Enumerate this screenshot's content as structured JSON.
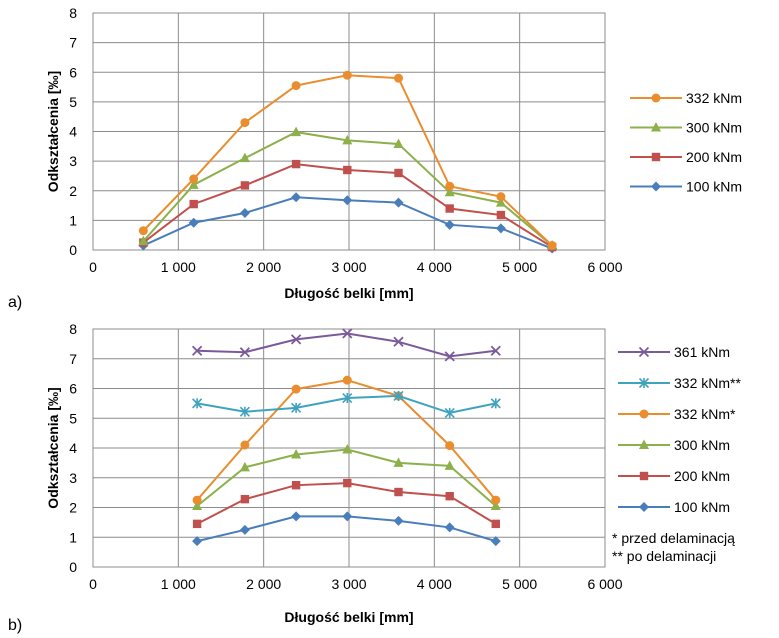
{
  "chart_data": [
    {
      "panel_label": "a)",
      "type": "line",
      "xlabel": "Długość belki [mm]",
      "ylabel": "Odkształcenia [‰]",
      "xlim": [
        0,
        6000
      ],
      "ylim": [
        0,
        8
      ],
      "x_ticks": [
        "0",
        "1 000",
        "2 000",
        "3 000",
        "4 000",
        "5 000",
        "6 000"
      ],
      "x_tick_values": [
        0,
        1000,
        2000,
        3000,
        4000,
        5000,
        6000
      ],
      "y_ticks": [
        "0",
        "1",
        "2",
        "3",
        "4",
        "5",
        "6",
        "7",
        "8"
      ],
      "y_tick_values": [
        0,
        1,
        2,
        3,
        4,
        5,
        6,
        7,
        8
      ],
      "grid": true,
      "legend_position": "right",
      "x": [
        590,
        1180,
        1780,
        2380,
        2980,
        3580,
        4180,
        4780,
        5380
      ],
      "series": [
        {
          "name": "332 kNm",
          "color": "#e98d2f",
          "marker": "circle",
          "values": [
            0.65,
            2.4,
            4.3,
            5.55,
            5.9,
            5.8,
            2.15,
            1.8,
            0.15
          ]
        },
        {
          "name": "300 kNm",
          "color": "#8cb04a",
          "marker": "triangle",
          "values": [
            0.3,
            2.2,
            3.1,
            3.98,
            3.7,
            3.58,
            1.95,
            1.6,
            0.15
          ]
        },
        {
          "name": "200 kNm",
          "color": "#c0504d",
          "marker": "square",
          "values": [
            0.25,
            1.55,
            2.18,
            2.9,
            2.7,
            2.6,
            1.4,
            1.18,
            0.1
          ]
        },
        {
          "name": "100 kNm",
          "color": "#4a7ebb",
          "marker": "diamond",
          "values": [
            0.15,
            0.92,
            1.25,
            1.78,
            1.68,
            1.6,
            0.85,
            0.73,
            0.05
          ]
        }
      ]
    },
    {
      "panel_label": "b)",
      "type": "line",
      "xlabel": "Długość belki [mm]",
      "ylabel": "Odkształcenia [‰]",
      "xlim": [
        0,
        6000
      ],
      "ylim": [
        0,
        8
      ],
      "x_ticks": [
        "0",
        "1 000",
        "2 000",
        "3 000",
        "4 000",
        "5 000",
        "6 000"
      ],
      "x_tick_values": [
        0,
        1000,
        2000,
        3000,
        4000,
        5000,
        6000
      ],
      "y_ticks": [
        "0",
        "1",
        "2",
        "3",
        "4",
        "5",
        "6",
        "7",
        "8"
      ],
      "y_tick_values": [
        0,
        1,
        2,
        3,
        4,
        5,
        6,
        7,
        8
      ],
      "grid": true,
      "legend_position": "right",
      "x": [
        1220,
        1780,
        2380,
        2980,
        3580,
        4180,
        4720
      ],
      "series": [
        {
          "name": "361 kNm",
          "color": "#7b5a9b",
          "marker": "x",
          "values": [
            7.27,
            7.22,
            7.65,
            7.85,
            7.57,
            7.08,
            7.27
          ]
        },
        {
          "name": "332 kNm**",
          "color": "#3fa3be",
          "marker": "star",
          "values": [
            5.5,
            5.22,
            5.35,
            5.68,
            5.75,
            5.18,
            5.5
          ]
        },
        {
          "name": "332 kNm*",
          "color": "#e98d2f",
          "marker": "circle",
          "values": [
            2.25,
            4.1,
            5.98,
            6.28,
            5.75,
            4.08,
            2.25
          ]
        },
        {
          "name": "300 kNm",
          "color": "#8cb04a",
          "marker": "triangle",
          "values": [
            2.05,
            3.35,
            3.78,
            3.95,
            3.5,
            3.4,
            2.05
          ]
        },
        {
          "name": "200 kNm",
          "color": "#c0504d",
          "marker": "square",
          "values": [
            1.45,
            2.28,
            2.75,
            2.82,
            2.52,
            2.38,
            1.45
          ]
        },
        {
          "name": "100 kNm",
          "color": "#4a7ebb",
          "marker": "diamond",
          "values": [
            0.87,
            1.25,
            1.7,
            1.7,
            1.55,
            1.33,
            0.87
          ]
        }
      ],
      "notes": [
        "* przed delaminacją",
        "** po delaminacji"
      ]
    }
  ]
}
